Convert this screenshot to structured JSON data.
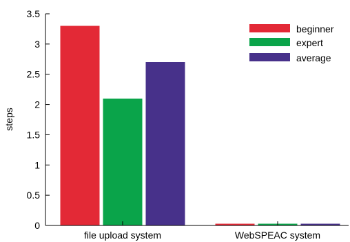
{
  "chart_data": {
    "type": "bar",
    "categories": [
      "file upload system",
      "WebSPEAC system"
    ],
    "series": [
      {
        "name": "beginner",
        "values": [
          3.3,
          0.0
        ],
        "color": "#e32936"
      },
      {
        "name": "expert",
        "values": [
          2.1,
          0.0
        ],
        "color": "#0aa44a"
      },
      {
        "name": "average",
        "values": [
          2.7,
          0.0
        ],
        "color": "#47318a"
      }
    ],
    "title": "",
    "xlabel": "",
    "ylabel": "steps",
    "ylim": [
      0,
      3.5
    ],
    "yticks": [
      0,
      0.5,
      1,
      1.5,
      2,
      2.5,
      3,
      3.5
    ],
    "ytick_labels": [
      "0",
      "0.5",
      "1",
      "1.5",
      "2",
      "2.5",
      "3",
      "3.5"
    ],
    "legend_position": "top-right",
    "grid": false
  }
}
